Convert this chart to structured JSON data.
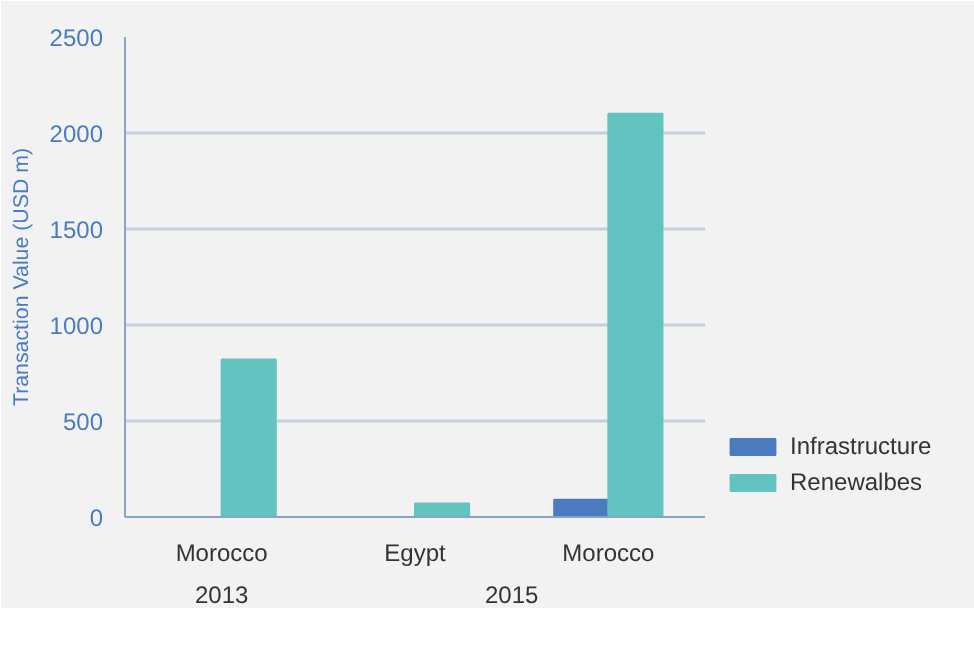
{
  "chart_data": {
    "type": "bar",
    "ylabel": "Transaction Value (USD m)",
    "categories": [
      "Morocco",
      "Egypt",
      "Morocco"
    ],
    "annotations": [
      "2013",
      "2015"
    ],
    "series": [
      {
        "name": "Infrastructure",
        "color": "#4a7bc0",
        "values": [
          null,
          null,
          90
        ]
      },
      {
        "name": "Renewalbes",
        "color": "#63c3c0",
        "values": [
          820,
          70,
          2100
        ]
      }
    ],
    "ylim": [
      0,
      2500
    ],
    "yticks": [
      0,
      500,
      1000,
      1500,
      2000,
      2500
    ],
    "grid": "y",
    "legend": "bottom right"
  }
}
